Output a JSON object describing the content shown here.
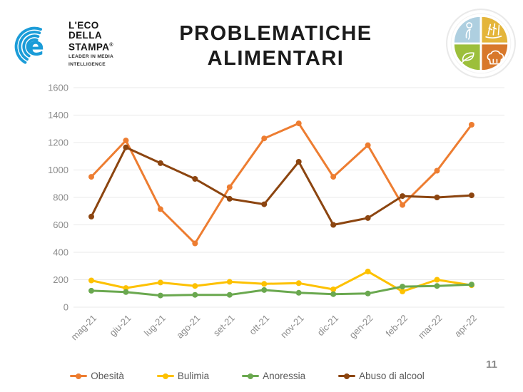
{
  "page_number": "11",
  "logo": {
    "name1": "L'ECO",
    "name2": "DELLA",
    "name3": "STAMPA",
    "registered": "®",
    "tagline1": "LEADER IN MEDIA",
    "tagline2": "INTELLIGENCE",
    "brand_color": "#1b9cd8"
  },
  "title": {
    "line1": "PROBLEMATICHE",
    "line2": "ALIMENTARI"
  },
  "plate_icon": {
    "quadrant_colors": {
      "top_left": "#aecfe0",
      "top_right": "#e4b53a",
      "bottom_left": "#9cbf3b",
      "bottom_right": "#d8782b"
    },
    "quadrant_glyphs": [
      "person-icon",
      "wheat-icon",
      "leaf-icon",
      "chef-hat-icon"
    ]
  },
  "chart_data": {
    "type": "line",
    "title": "PROBLEMATICHE ALIMENTARI",
    "categories": [
      "mag-21",
      "giu-21",
      "lug-21",
      "ago-21",
      "set-21",
      "ott-21",
      "nov-21",
      "dic-21",
      "gen-22",
      "feb-22",
      "mar-22",
      "apr-22"
    ],
    "series": [
      {
        "name": "Obesità",
        "color": "#ed7d31",
        "values": [
          950,
          1215,
          715,
          465,
          875,
          1230,
          1340,
          950,
          1180,
          745,
          995,
          1330
        ]
      },
      {
        "name": "Bulimia",
        "color": "#fdc100",
        "values": [
          195,
          140,
          180,
          155,
          185,
          170,
          175,
          130,
          260,
          115,
          200,
          160
        ]
      },
      {
        "name": "Anoressia",
        "color": "#6aa84f",
        "values": [
          120,
          110,
          85,
          90,
          90,
          125,
          105,
          95,
          100,
          150,
          155,
          165
        ]
      },
      {
        "name": "Abuso di alcool",
        "color": "#8c4510",
        "values": [
          660,
          1165,
          1050,
          935,
          790,
          750,
          1060,
          600,
          650,
          810,
          800,
          815
        ]
      }
    ],
    "ylim": [
      0,
      1600
    ],
    "ytick_step": 200,
    "grid": true,
    "grid_color": "#e9e9e9",
    "axis_label_color": "#8c8c8c",
    "legend_position": "bottom",
    "xlabel": "",
    "ylabel": ""
  }
}
